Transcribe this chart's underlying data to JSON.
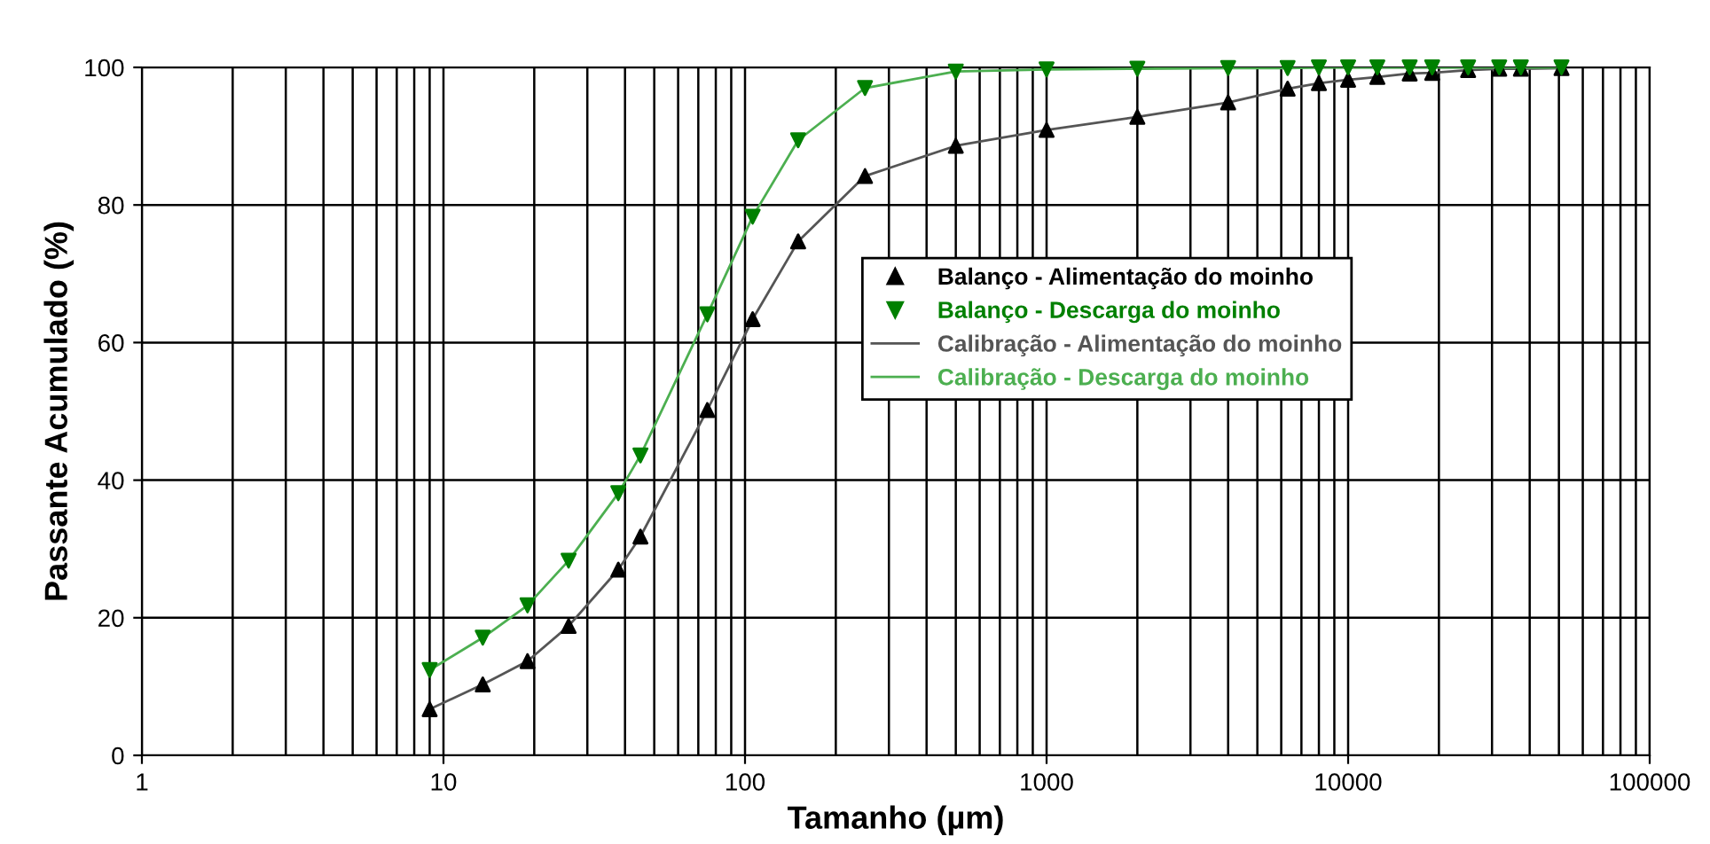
{
  "chart_data": {
    "type": "line",
    "xlabel": "Tamanho (µm)",
    "ylabel": "Passante Acumulado (%)",
    "log": "x",
    "grid": true,
    "legend": "right",
    "xlim": [
      1,
      100000
    ],
    "xticks": [
      1,
      10,
      100,
      1000,
      10000,
      100000
    ],
    "ylim": [
      0,
      100
    ],
    "yticks": [
      0,
      20,
      40,
      60,
      80,
      100
    ],
    "series": [
      {
        "name": "Balanço - Alimentação do moinho",
        "type": "scatter",
        "marker": "triangle",
        "color": "#000000",
        "x": [
          9,
          13.5,
          19,
          26,
          38,
          45,
          75,
          106,
          150,
          250,
          500,
          1000,
          2000,
          4000,
          6300,
          8000,
          10000,
          12500,
          16000,
          19000,
          25000,
          31700,
          37400,
          51000
        ],
        "values": [
          6.7,
          10.3,
          13.7,
          18.8,
          27.0,
          31.8,
          50.2,
          63.4,
          74.7,
          84.2,
          88.6,
          90.9,
          92.8,
          94.9,
          96.9,
          97.7,
          98.2,
          98.6,
          99.1,
          99.2,
          99.6,
          99.8,
          99.8,
          99.9
        ]
      },
      {
        "name": "Balanço - Descarga do moinho",
        "type": "scatter",
        "marker": "triangle_down",
        "color": "#008000",
        "x": [
          9,
          13.5,
          19,
          26,
          38,
          45,
          75,
          106,
          150,
          250,
          500,
          1000,
          2000,
          4000,
          6300,
          8000,
          10000,
          12500,
          16000,
          19000,
          25000,
          31700,
          37400,
          51000
        ],
        "values": [
          12.4,
          17.1,
          21.8,
          28.3,
          38.1,
          43.6,
          64.1,
          78.3,
          89.4,
          97.0,
          99.4,
          99.7,
          99.8,
          99.9,
          99.9,
          100,
          100,
          100,
          100,
          100,
          100,
          100,
          100,
          100
        ]
      },
      {
        "name": "Calibração - Alimentação do moinho",
        "color": "#555555",
        "x": [
          9,
          13.5,
          19,
          26,
          38,
          45,
          75,
          106,
          150,
          250,
          500,
          1000,
          2000,
          4000,
          6300,
          8000,
          10000,
          12500,
          16000,
          19000,
          25000,
          31700,
          37400,
          51000
        ],
        "values": [
          6.7,
          10.3,
          13.7,
          18.8,
          27.0,
          31.8,
          50.2,
          63.4,
          74.7,
          84.2,
          88.6,
          90.9,
          92.8,
          94.9,
          96.9,
          97.7,
          98.2,
          98.6,
          99.1,
          99.2,
          99.6,
          99.8,
          99.8,
          99.9
        ]
      },
      {
        "name": "Calibração - Descarga do moinho",
        "color": "#4caf50",
        "x": [
          9,
          13.5,
          19,
          26,
          38,
          45,
          75,
          106,
          150,
          250,
          500,
          1000,
          2000,
          4000,
          6300,
          8000,
          10000,
          12500,
          16000,
          19000,
          25000,
          31700,
          37400,
          51000
        ],
        "values": [
          12.4,
          17.1,
          21.8,
          28.3,
          38.1,
          43.6,
          64.1,
          78.3,
          89.4,
          97.0,
          99.4,
          99.7,
          99.8,
          99.9,
          99.9,
          100,
          100,
          100,
          100,
          100,
          100,
          100,
          100,
          100
        ]
      }
    ]
  }
}
